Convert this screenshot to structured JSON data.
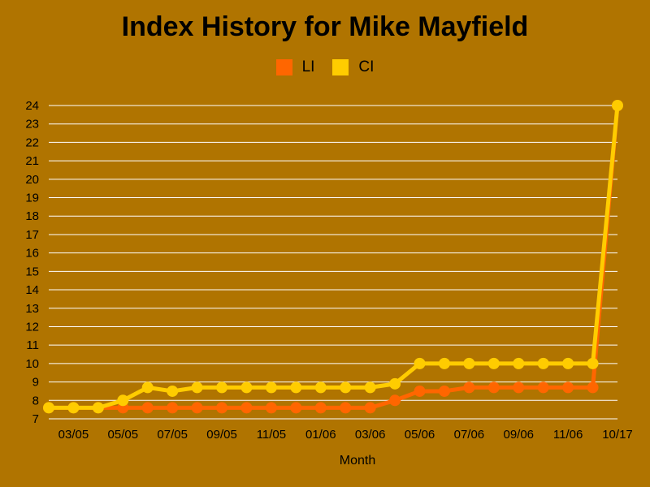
{
  "chart_data": {
    "type": "line",
    "title": "Index History for Mike Mayfield",
    "xlabel": "Month",
    "ylabel": "",
    "ylim": [
      7,
      24
    ],
    "yticks": [
      7,
      8,
      9,
      10,
      11,
      12,
      13,
      14,
      15,
      16,
      17,
      18,
      19,
      20,
      21,
      22,
      23,
      24
    ],
    "x_tick_labels": [
      "03/05",
      "05/05",
      "07/05",
      "09/05",
      "11/05",
      "01/06",
      "03/06",
      "05/06",
      "07/06",
      "09/06",
      "11/06",
      "10/17"
    ],
    "grid": true,
    "legend_position": "top-center",
    "series": [
      {
        "name": "LI",
        "color": "#ff6600",
        "values": [
          7.6,
          7.6,
          7.6,
          7.6,
          7.6,
          7.6,
          7.6,
          7.6,
          7.6,
          7.6,
          7.6,
          7.6,
          7.6,
          7.6,
          8.0,
          8.5,
          8.5,
          8.7,
          8.7,
          8.7,
          8.7,
          8.7,
          8.7,
          24
        ]
      },
      {
        "name": "CI",
        "color": "#ffcc00",
        "values": [
          7.6,
          7.6,
          7.6,
          8.0,
          8.7,
          8.5,
          8.7,
          8.7,
          8.7,
          8.7,
          8.7,
          8.7,
          8.7,
          8.7,
          8.9,
          10,
          10,
          10,
          10,
          10,
          10,
          10,
          10,
          24
        ]
      }
    ]
  }
}
